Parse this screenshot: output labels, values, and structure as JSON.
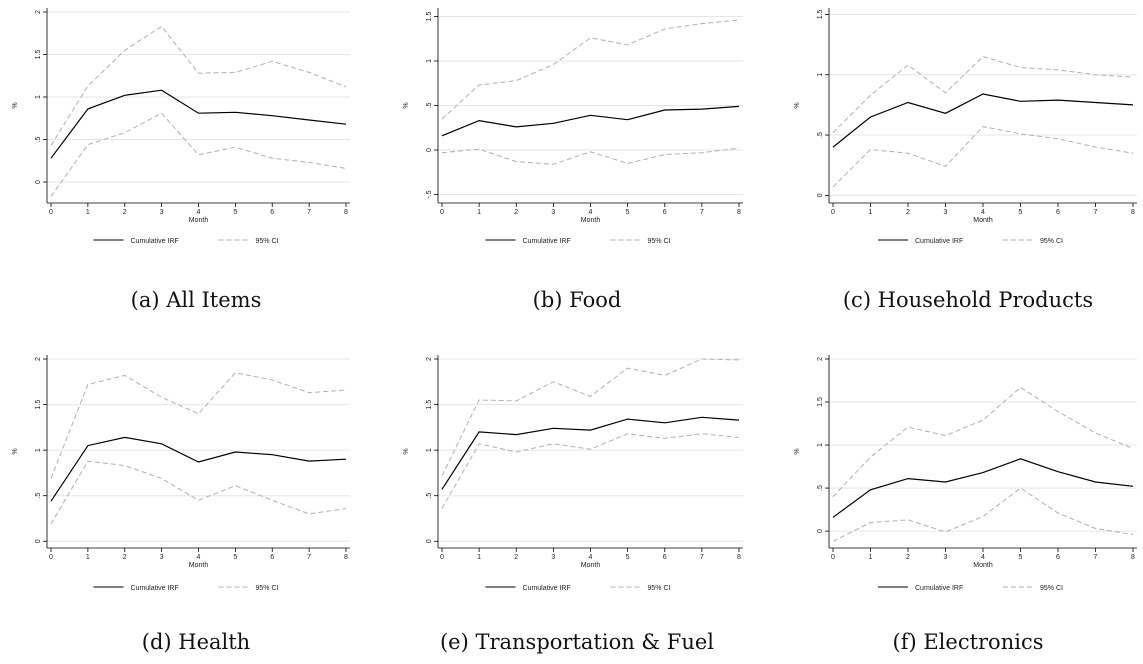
{
  "legend": {
    "irf_label": "Cumulative IRF",
    "ci_label": "95% CI"
  },
  "axis_common": {
    "ylabel": "%",
    "xlabel": "Month"
  },
  "captions": [
    "(a) All Items",
    "(b) Food",
    "(c) Household Products",
    "(d) Health",
    "(e) Transportation & Fuel",
    "(f) Electronics"
  ],
  "colors": {
    "irf": "#000000",
    "ci": "#b0b0b0",
    "grid": "#e6e6e6"
  },
  "chart_data": [
    {
      "type": "line",
      "x": [
        0,
        1,
        2,
        3,
        4,
        5,
        6,
        7,
        8
      ],
      "xlabel": "Month",
      "ylabel": "%",
      "ylim": [
        -0.2,
        2.0
      ],
      "yticks": [
        0,
        0.5,
        1,
        1.5,
        2
      ],
      "ytick_labels": [
        "0",
        ".5",
        "1",
        "1.5",
        "2"
      ],
      "series": [
        {
          "name": "Cumulative IRF",
          "values": [
            0.28,
            0.86,
            1.02,
            1.08,
            0.81,
            0.82,
            0.78,
            0.73,
            0.68
          ]
        },
        {
          "name": "95% CI",
          "values": [
            0.43,
            1.13,
            1.55,
            1.83,
            1.28,
            1.29,
            1.42,
            1.29,
            1.12
          ]
        },
        {
          "name": "95% CI",
          "values": [
            -0.17,
            0.44,
            0.58,
            0.81,
            0.32,
            0.41,
            0.28,
            0.23,
            0.16
          ]
        }
      ]
    },
    {
      "type": "line",
      "x": [
        0,
        1,
        2,
        3,
        4,
        5,
        6,
        7,
        8
      ],
      "xlabel": "Month",
      "ylabel": "%",
      "ylim": [
        -0.55,
        1.55
      ],
      "yticks": [
        -0.5,
        0,
        0.5,
        1,
        1.5
      ],
      "ytick_labels": [
        "-.5",
        "0",
        ".5",
        "1",
        "1.5"
      ],
      "series": [
        {
          "name": "Cumulative IRF",
          "values": [
            0.16,
            0.33,
            0.26,
            0.3,
            0.39,
            0.34,
            0.45,
            0.46,
            0.49
          ]
        },
        {
          "name": "95% CI",
          "values": [
            0.35,
            0.73,
            0.78,
            0.96,
            1.26,
            1.18,
            1.36,
            1.42,
            1.46
          ]
        },
        {
          "name": "95% CI",
          "values": [
            -0.03,
            0.01,
            -0.13,
            -0.16,
            -0.02,
            -0.15,
            -0.05,
            -0.03,
            0.02
          ]
        }
      ]
    },
    {
      "type": "line",
      "x": [
        0,
        1,
        2,
        3,
        4,
        5,
        6,
        7,
        8
      ],
      "xlabel": "Month",
      "ylabel": "%",
      "ylim": [
        -0.03,
        1.52
      ],
      "yticks": [
        0,
        0.5,
        1,
        1.5
      ],
      "ytick_labels": [
        "0",
        ".5",
        "1",
        "1.5"
      ],
      "series": [
        {
          "name": "Cumulative IRF",
          "values": [
            0.4,
            0.65,
            0.77,
            0.68,
            0.84,
            0.78,
            0.79,
            0.77,
            0.75
          ]
        },
        {
          "name": "95% CI",
          "values": [
            0.52,
            0.83,
            1.08,
            0.85,
            1.15,
            1.06,
            1.04,
            1.0,
            0.98
          ]
        },
        {
          "name": "95% CI",
          "values": [
            0.07,
            0.38,
            0.35,
            0.24,
            0.57,
            0.51,
            0.47,
            0.4,
            0.35
          ]
        }
      ]
    },
    {
      "type": "line",
      "x": [
        0,
        1,
        2,
        3,
        4,
        5,
        6,
        7,
        8
      ],
      "xlabel": "Month",
      "ylabel": "%",
      "ylim": [
        -0.03,
        2.0
      ],
      "yticks": [
        0,
        0.5,
        1,
        1.5,
        2
      ],
      "ytick_labels": [
        "0",
        ".5",
        "1",
        "1.5",
        "2"
      ],
      "series": [
        {
          "name": "Cumulative IRF",
          "values": [
            0.44,
            1.05,
            1.14,
            1.07,
            0.87,
            0.98,
            0.95,
            0.88,
            0.9
          ]
        },
        {
          "name": "95% CI",
          "values": [
            0.69,
            1.72,
            1.82,
            1.58,
            1.4,
            1.85,
            1.77,
            1.63,
            1.66
          ]
        },
        {
          "name": "95% CI",
          "values": [
            0.19,
            0.88,
            0.83,
            0.69,
            0.45,
            0.61,
            0.45,
            0.3,
            0.36
          ]
        }
      ]
    },
    {
      "type": "line",
      "x": [
        0,
        1,
        2,
        3,
        4,
        5,
        6,
        7,
        8
      ],
      "xlabel": "Month",
      "ylabel": "%",
      "ylim": [
        -0.03,
        2.0
      ],
      "yticks": [
        0,
        0.5,
        1,
        1.5,
        2
      ],
      "ytick_labels": [
        "0",
        ".5",
        "1",
        "1.5",
        "2"
      ],
      "series": [
        {
          "name": "Cumulative IRF",
          "values": [
            0.57,
            1.2,
            1.17,
            1.24,
            1.22,
            1.34,
            1.3,
            1.36,
            1.33
          ]
        },
        {
          "name": "95% CI",
          "values": [
            0.72,
            1.55,
            1.54,
            1.75,
            1.59,
            1.9,
            1.82,
            2.0,
            1.99
          ]
        },
        {
          "name": "95% CI",
          "values": [
            0.36,
            1.07,
            0.98,
            1.07,
            1.01,
            1.18,
            1.13,
            1.18,
            1.14
          ]
        }
      ]
    },
    {
      "type": "line",
      "x": [
        0,
        1,
        2,
        3,
        4,
        5,
        6,
        7,
        8
      ],
      "xlabel": "Month",
      "ylabel": "%",
      "ylim": [
        -0.15,
        2.0
      ],
      "yticks": [
        0,
        0.5,
        1,
        1.5,
        2
      ],
      "ytick_labels": [
        "0",
        ".5",
        "1",
        "1.5",
        "2"
      ],
      "series": [
        {
          "name": "Cumulative IRF",
          "values": [
            0.16,
            0.48,
            0.61,
            0.57,
            0.68,
            0.84,
            0.69,
            0.57,
            0.52
          ]
        },
        {
          "name": "95% CI",
          "values": [
            0.4,
            0.86,
            1.21,
            1.11,
            1.29,
            1.67,
            1.39,
            1.14,
            0.96
          ]
        },
        {
          "name": "95% CI",
          "values": [
            -0.12,
            0.1,
            0.13,
            -0.01,
            0.17,
            0.5,
            0.21,
            0.03,
            -0.04
          ]
        }
      ]
    }
  ]
}
